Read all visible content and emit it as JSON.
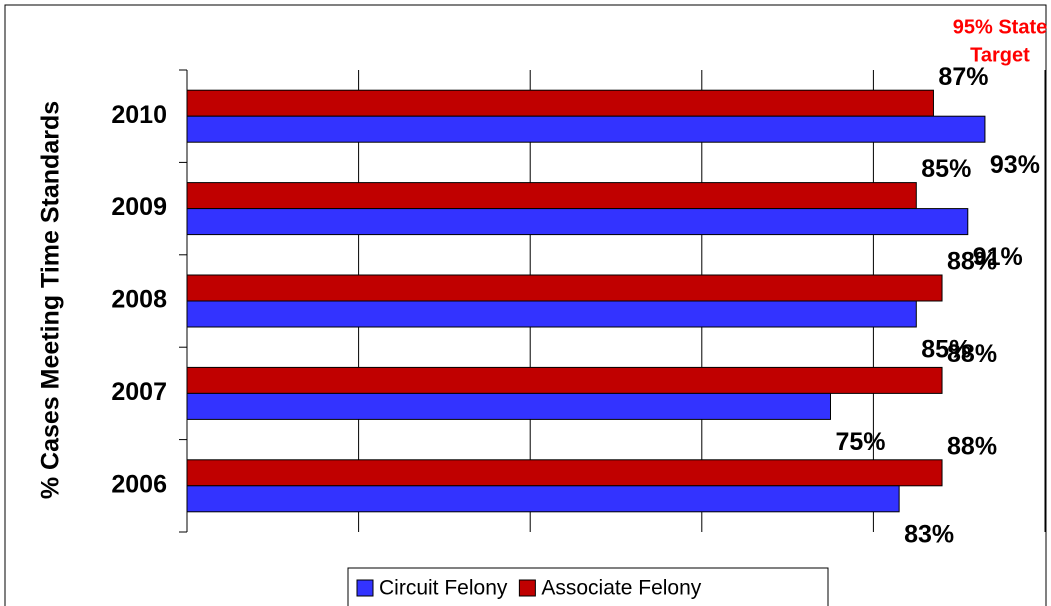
{
  "chart_data": {
    "type": "hbar",
    "y_label": "% Cases Meeting Time Standards",
    "annotation": [
      "95% State",
      "Target"
    ],
    "categories": [
      "2010",
      "2009",
      "2008",
      "2007",
      "2006"
    ],
    "series": [
      {
        "name": "Associate Felony",
        "color": "#c00000",
        "values": [
          87,
          85,
          88,
          88,
          88
        ],
        "value_labels": [
          "87%",
          "85%",
          "88%",
          "88%",
          "88%"
        ]
      },
      {
        "name": "Circuit Felony",
        "color": "#3333ff",
        "values": [
          93,
          91,
          85,
          75,
          83
        ],
        "value_labels": [
          "93%",
          "91%",
          "85%",
          "75%",
          "83%"
        ]
      }
    ],
    "xlim": [
      0,
      100
    ],
    "xticks": [
      0,
      20,
      40,
      60,
      80,
      100
    ],
    "grid": true,
    "legend": "bottom",
    "annotation_color": "#ff0000"
  }
}
